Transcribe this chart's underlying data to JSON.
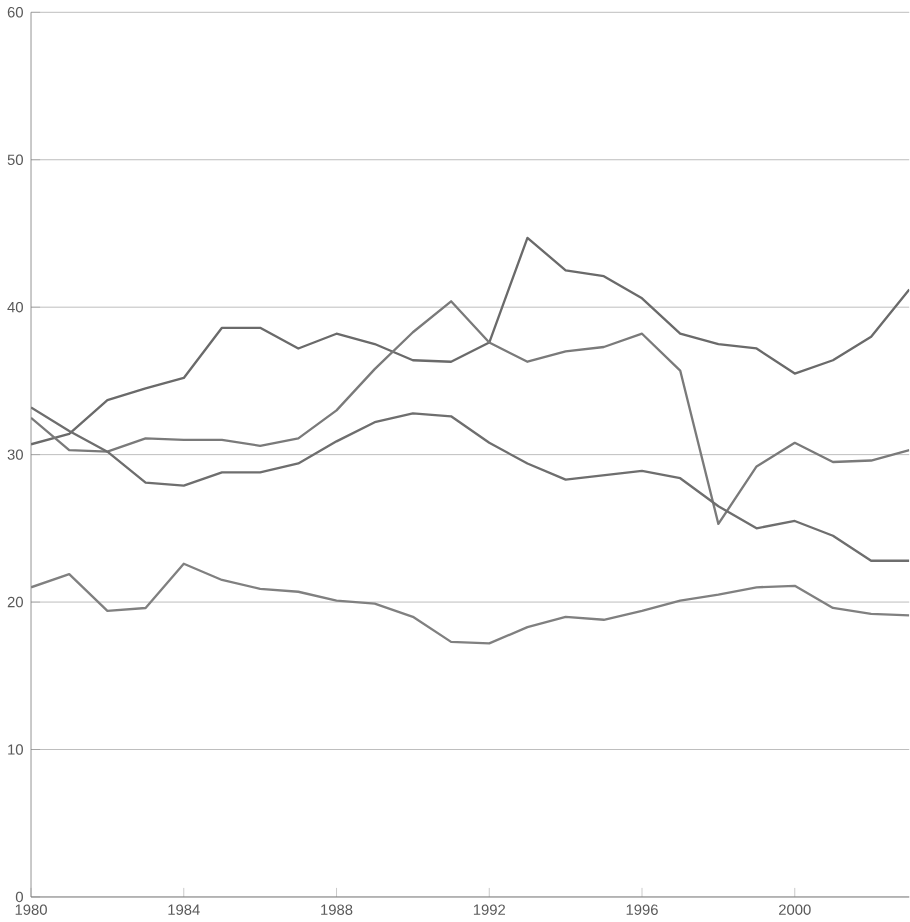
{
  "chart_data": {
    "type": "line",
    "x": [
      1980,
      1981,
      1982,
      1983,
      1984,
      1985,
      1986,
      1987,
      1988,
      1989,
      1990,
      1991,
      1992,
      1993,
      1994,
      1995,
      1996,
      1997,
      1998,
      1999,
      2000,
      2001,
      2002,
      2003
    ],
    "series": [
      {
        "color": "#6a6a6a",
        "values": [
          30.7,
          31.4,
          33.7,
          34.5,
          35.2,
          38.6,
          38.6,
          37.2,
          38.2,
          37.5,
          36.4,
          36.3,
          37.6,
          44.7,
          42.5,
          42.1,
          40.6,
          38.2,
          37.5,
          37.2,
          35.5,
          36.4,
          38.0,
          41.2
        ]
      },
      {
        "color": "#7a7a7a",
        "values": [
          32.5,
          30.3,
          30.2,
          31.1,
          31.0,
          31.0,
          30.6,
          31.1,
          33.0,
          35.8,
          38.3,
          40.4,
          37.6,
          36.3,
          37.0,
          37.3,
          38.2,
          35.7,
          25.3,
          29.2,
          30.8,
          29.5,
          29.6,
          30.3
        ]
      },
      {
        "color": "#6e6e6e",
        "values": [
          33.2,
          31.6,
          30.2,
          28.1,
          27.9,
          28.8,
          28.8,
          29.4,
          30.9,
          32.2,
          32.8,
          32.6,
          30.8,
          29.4,
          28.3,
          28.6,
          28.9,
          28.4,
          26.5,
          25.0,
          25.5,
          24.5,
          22.8,
          22.8
        ]
      },
      {
        "color": "#808080",
        "values": [
          21.0,
          21.9,
          19.4,
          19.6,
          22.6,
          21.5,
          20.9,
          20.7,
          20.1,
          19.9,
          19.0,
          17.3,
          17.2,
          18.3,
          19.0,
          18.8,
          19.4,
          20.1,
          20.5,
          21.0,
          21.1,
          19.6,
          19.2,
          19.1
        ]
      }
    ],
    "xlim": [
      1980,
      2003
    ],
    "xticks": [
      1980,
      1984,
      1988,
      1992,
      1996,
      2000
    ],
    "ylim": [
      0,
      60
    ],
    "yticks": [
      0,
      10,
      20,
      30,
      40,
      50,
      60
    ],
    "grid": "y",
    "marker": "none",
    "line_style": "solid"
  }
}
